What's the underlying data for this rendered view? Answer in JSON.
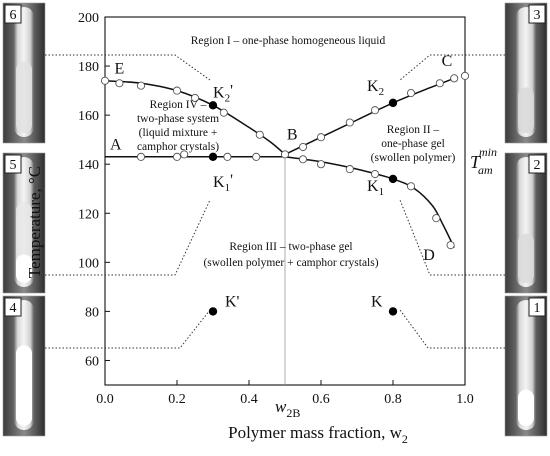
{
  "chart_data": {
    "type": "scatter",
    "xlabel": "Polymer mass fraction, w",
    "xlabel_sub": "2",
    "ylabel": "Temperature, °C",
    "xlim": [
      0.0,
      1.0
    ],
    "ylim": [
      50,
      200
    ],
    "x_ticks": [
      {
        "value": 0.0,
        "label": "0.0"
      },
      {
        "value": 0.2,
        "label": "0.2"
      },
      {
        "value": 0.4,
        "label": "0.4"
      },
      {
        "value": 0.6,
        "label": "0.6"
      },
      {
        "value": 0.8,
        "label": "0.8"
      },
      {
        "value": 1.0,
        "label": "1.0"
      }
    ],
    "y_ticks": [
      {
        "value": 60,
        "label": "60"
      },
      {
        "value": 80,
        "label": "80"
      },
      {
        "value": 100,
        "label": "100"
      },
      {
        "value": 120,
        "label": "120"
      },
      {
        "value": 140,
        "label": "140"
      },
      {
        "value": 160,
        "label": "160"
      },
      {
        "value": 180,
        "label": "180"
      },
      {
        "value": 200,
        "label": "200"
      }
    ],
    "w2B": {
      "value": 0.5,
      "label": "w",
      "sub": "2B"
    },
    "tam_label": {
      "main": "T",
      "sub": "am",
      "sup": "min",
      "value": 143
    },
    "open_circles": [
      {
        "x": 0.0,
        "y": 174
      },
      {
        "x": 0.04,
        "y": 173
      },
      {
        "x": 0.1,
        "y": 172
      },
      {
        "x": 0.2,
        "y": 170
      },
      {
        "x": 0.25,
        "y": 167
      },
      {
        "x": 0.33,
        "y": 161
      },
      {
        "x": 0.43,
        "y": 152
      },
      {
        "x": 0.5,
        "y": 144
      },
      {
        "x": 0.55,
        "y": 147
      },
      {
        "x": 0.6,
        "y": 151
      },
      {
        "x": 0.68,
        "y": 157
      },
      {
        "x": 0.75,
        "y": 162
      },
      {
        "x": 0.85,
        "y": 169
      },
      {
        "x": 0.93,
        "y": 173
      },
      {
        "x": 0.97,
        "y": 175
      },
      {
        "x": 1.0,
        "y": 176
      },
      {
        "x": 0.1,
        "y": 143
      },
      {
        "x": 0.2,
        "y": 143
      },
      {
        "x": 0.22,
        "y": 144
      },
      {
        "x": 0.34,
        "y": 143
      },
      {
        "x": 0.42,
        "y": 143
      },
      {
        "x": 0.55,
        "y": 142
      },
      {
        "x": 0.6,
        "y": 140
      },
      {
        "x": 0.68,
        "y": 138
      },
      {
        "x": 0.75,
        "y": 136
      },
      {
        "x": 0.85,
        "y": 131
      },
      {
        "x": 0.92,
        "y": 118
      },
      {
        "x": 0.96,
        "y": 107
      }
    ],
    "filled_points": [
      {
        "x": 0.3,
        "y": 164,
        "label": "K",
        "sub": "2",
        "prime": "'"
      },
      {
        "x": 0.3,
        "y": 143,
        "label": "K",
        "sub": "1",
        "prime": "'"
      },
      {
        "x": 0.8,
        "y": 165,
        "label": "K",
        "sub": "2",
        "prime": ""
      },
      {
        "x": 0.8,
        "y": 134,
        "label": "K",
        "sub": "1",
        "prime": ""
      },
      {
        "x": 0.3,
        "y": 80,
        "label": "K'",
        "sub": "",
        "prime": ""
      },
      {
        "x": 0.8,
        "y": 80,
        "label": "K",
        "sub": "",
        "prime": ""
      }
    ],
    "curves": {
      "EB": [
        [
          0.0,
          174
        ],
        [
          0.1,
          173
        ],
        [
          0.2,
          170
        ],
        [
          0.3,
          164
        ],
        [
          0.4,
          155
        ],
        [
          0.46,
          149
        ],
        [
          0.5,
          144
        ]
      ],
      "BC": [
        [
          0.5,
          144
        ],
        [
          0.6,
          151
        ],
        [
          0.7,
          158
        ],
        [
          0.8,
          165
        ],
        [
          0.9,
          171
        ],
        [
          0.97,
          175
        ]
      ],
      "AB": [
        [
          0.0,
          143
        ],
        [
          0.5,
          143
        ]
      ],
      "BD": [
        [
          0.5,
          143
        ],
        [
          0.6,
          141
        ],
        [
          0.7,
          138
        ],
        [
          0.8,
          134
        ],
        [
          0.86,
          130
        ],
        [
          0.91,
          123
        ],
        [
          0.94,
          115
        ],
        [
          0.97,
          106
        ]
      ]
    },
    "point_labels": [
      {
        "text": "E",
        "x": 0.04,
        "y": 177
      },
      {
        "text": "A",
        "x": 0.03,
        "y": 146
      },
      {
        "text": "B",
        "x": 0.52,
        "y": 150
      },
      {
        "text": "C",
        "x": 0.95,
        "y": 180
      },
      {
        "text": "D",
        "x": 0.9,
        "y": 101
      }
    ],
    "regions": [
      {
        "lines": [
          "Region I – one-phase homogeneous liquid"
        ]
      },
      {
        "lines": [
          "Region II –",
          "one-phase gel",
          "(swollen polymer)"
        ]
      },
      {
        "lines": [
          "Region III – two-phase gel",
          "(swollen polymer + camphor crystals)"
        ]
      },
      {
        "lines": [
          "Region IV –",
          "two-phase system",
          "(liquid mixture +",
          "camphor crystals)"
        ]
      }
    ],
    "tubes": [
      {
        "label": "6"
      },
      {
        "label": "5"
      },
      {
        "label": "4"
      },
      {
        "label": "3"
      },
      {
        "label": "2"
      },
      {
        "label": "1"
      }
    ]
  }
}
